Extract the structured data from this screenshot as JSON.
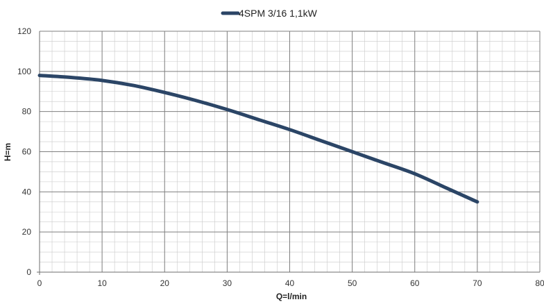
{
  "chart_data": {
    "type": "line",
    "xlabel": "Q=l/min",
    "ylabel": "H=m",
    "xlim": [
      0,
      80
    ],
    "ylim": [
      0,
      120
    ],
    "x_ticks": [
      0,
      10,
      20,
      30,
      40,
      50,
      60,
      70,
      80
    ],
    "y_ticks": [
      0,
      20,
      40,
      60,
      80,
      100,
      120
    ],
    "x_minor_step": 2,
    "y_minor_step": 5,
    "grid": true,
    "legend_position": "top-center",
    "series": [
      {
        "name": "4SPM 3/16 1,1kW",
        "color": "#2b4566",
        "x": [
          0,
          5,
          10,
          15,
          20,
          25,
          30,
          35,
          40,
          45,
          50,
          55,
          60,
          65,
          70
        ],
        "y": [
          98,
          97,
          95.5,
          93,
          89.5,
          85.5,
          81,
          76,
          71,
          65.5,
          60,
          54.5,
          49,
          42,
          35
        ]
      }
    ]
  }
}
